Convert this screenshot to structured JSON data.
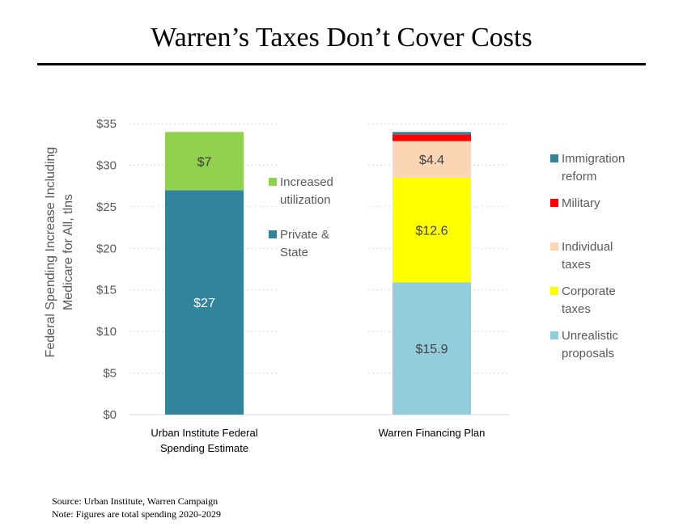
{
  "title": "Warren’s Taxes Don’t Cover Costs",
  "source": "Source: Urban Institute, Warren Campaign",
  "note": "Note: Figures are total spending 2020-2029",
  "chart_data": {
    "type": "bar",
    "stacked": true,
    "ylabel": [
      "Federal Spending Increase Including",
      "Medicare for All, tlns"
    ],
    "ylim": [
      0,
      35
    ],
    "yticks": [
      0,
      5,
      10,
      15,
      20,
      25,
      30,
      35
    ],
    "ytick_labels": [
      "$0",
      "$5",
      "$10",
      "$15",
      "$20",
      "$25",
      "$30",
      "$35"
    ],
    "grid": true,
    "bars": [
      {
        "category": [
          "Urban Institute Federal",
          "Spending Estimate"
        ],
        "segments": [
          {
            "name": "Private & State",
            "legend": [
              "Private &",
              "State"
            ],
            "value": 27,
            "label": "$27",
            "color": "#31849b",
            "label_color": "#ffffff"
          },
          {
            "name": "Increased utilization",
            "legend": [
              "Increased",
              "utilization"
            ],
            "value": 7,
            "label": "$7",
            "color": "#92d050",
            "label_color": "#404040"
          }
        ]
      },
      {
        "category": [
          "Warren Financing Plan"
        ],
        "segments": [
          {
            "name": "Unrealistic proposals",
            "legend": [
              "Unrealistic",
              "proposals"
            ],
            "value": 15.9,
            "label": "$15.9",
            "color": "#92cddc",
            "label_color": "#404040"
          },
          {
            "name": "Corporate taxes",
            "legend": [
              "Corporate",
              "taxes"
            ],
            "value": 12.6,
            "label": "$12.6",
            "color": "#ffff00",
            "label_color": "#404040"
          },
          {
            "name": "Individual taxes",
            "legend": [
              "Individual",
              "taxes"
            ],
            "value": 4.4,
            "label": "$4.4",
            "color": "#fcd5b5",
            "label_color": "#404040"
          },
          {
            "name": "Military",
            "legend": [
              "Military"
            ],
            "value": 0.8,
            "label": "",
            "color": "#ff0000",
            "label_color": "#404040"
          },
          {
            "name": "Immigration reform",
            "legend": [
              "Immigration",
              "reform"
            ],
            "value": 0.3,
            "label": "",
            "color": "#31849b",
            "label_color": "#404040"
          }
        ]
      }
    ]
  }
}
